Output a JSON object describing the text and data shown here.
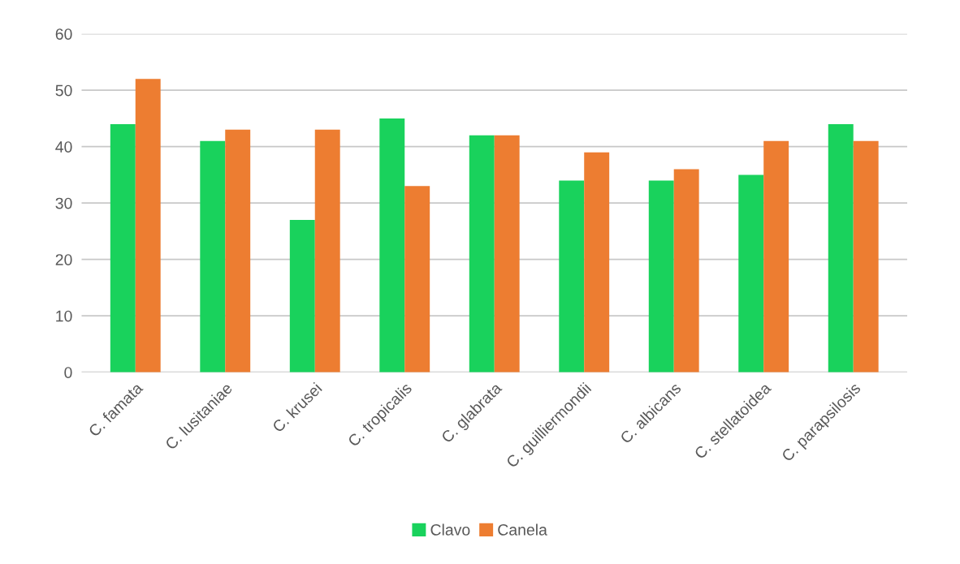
{
  "chart_data": {
    "type": "bar",
    "categories": [
      "C. famata",
      "C. lusitaniae",
      "C. krusei",
      "C. tropicalis",
      "C. glabrata",
      "C. guilliermondii",
      "C. albicans",
      "C. stellatoidea",
      "C. parapsilosis"
    ],
    "series": [
      {
        "name": "Clavo",
        "color": "#19d25c",
        "values": [
          44,
          41,
          27,
          45,
          42,
          34,
          34,
          35,
          44
        ]
      },
      {
        "name": "Canela",
        "color": "#ed7d31",
        "values": [
          52,
          43,
          43,
          33,
          42,
          39,
          36,
          41,
          41
        ]
      }
    ],
    "ylim": [
      0,
      60
    ],
    "yticks": [
      0,
      10,
      20,
      30,
      40,
      50,
      60
    ],
    "grid": "y",
    "legend": "bottom"
  }
}
